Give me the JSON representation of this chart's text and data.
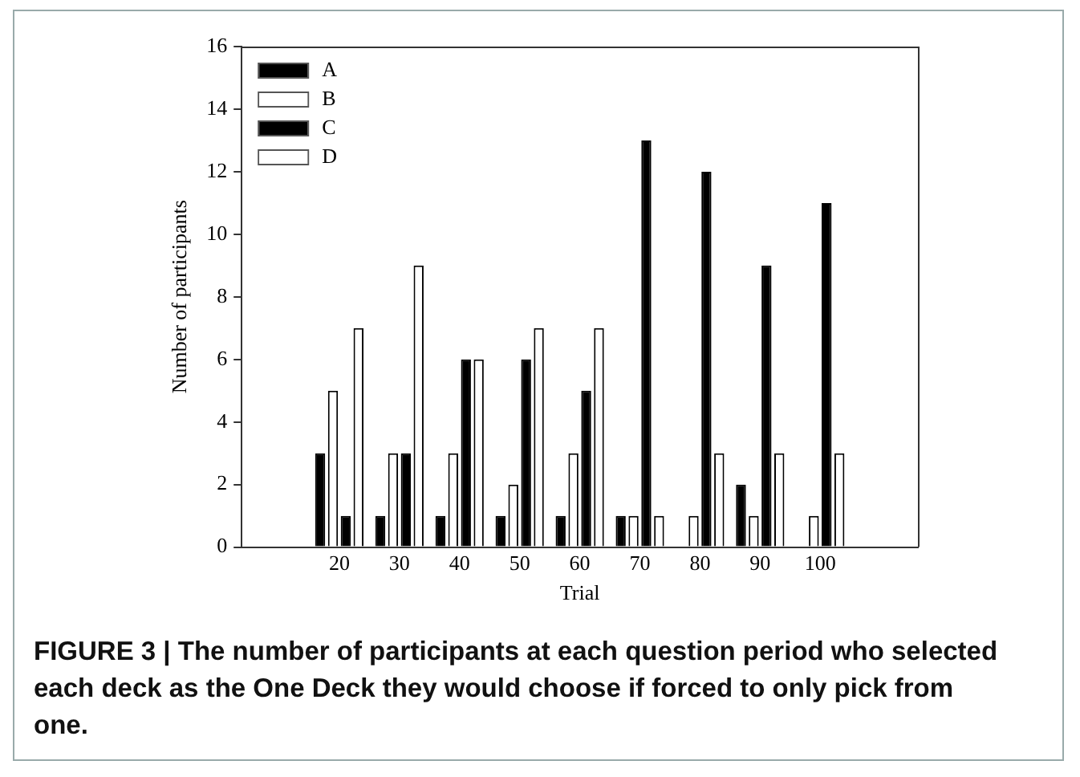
{
  "chart_data": {
    "type": "bar",
    "xlabel": "Trial",
    "ylabel": "Number of participants",
    "categories": [
      "20",
      "30",
      "40",
      "50",
      "60",
      "70",
      "80",
      "90",
      "100"
    ],
    "series": [
      {
        "name": "A",
        "color": "#000000",
        "values": [
          3,
          1,
          1,
          1,
          1,
          1,
          0,
          2,
          0
        ]
      },
      {
        "name": "B",
        "color": "#ffffff",
        "values": [
          5,
          3,
          3,
          2,
          3,
          1,
          1,
          1,
          1
        ]
      },
      {
        "name": "C",
        "color": "#000000",
        "values": [
          1,
          3,
          6,
          6,
          5,
          13,
          12,
          9,
          11
        ]
      },
      {
        "name": "D",
        "color": "#ffffff",
        "values": [
          7,
          9,
          6,
          7,
          7,
          1,
          3,
          3,
          3
        ]
      }
    ],
    "ylim": [
      0,
      16
    ],
    "yticks": [
      0,
      2,
      4,
      6,
      8,
      10,
      12,
      14,
      16
    ],
    "legend": "top left",
    "annotations": [
      "FIGURE 3 | The number of participants at each question period who selected each deck as the One Deck they would choose if forced to only pick from one."
    ]
  }
}
